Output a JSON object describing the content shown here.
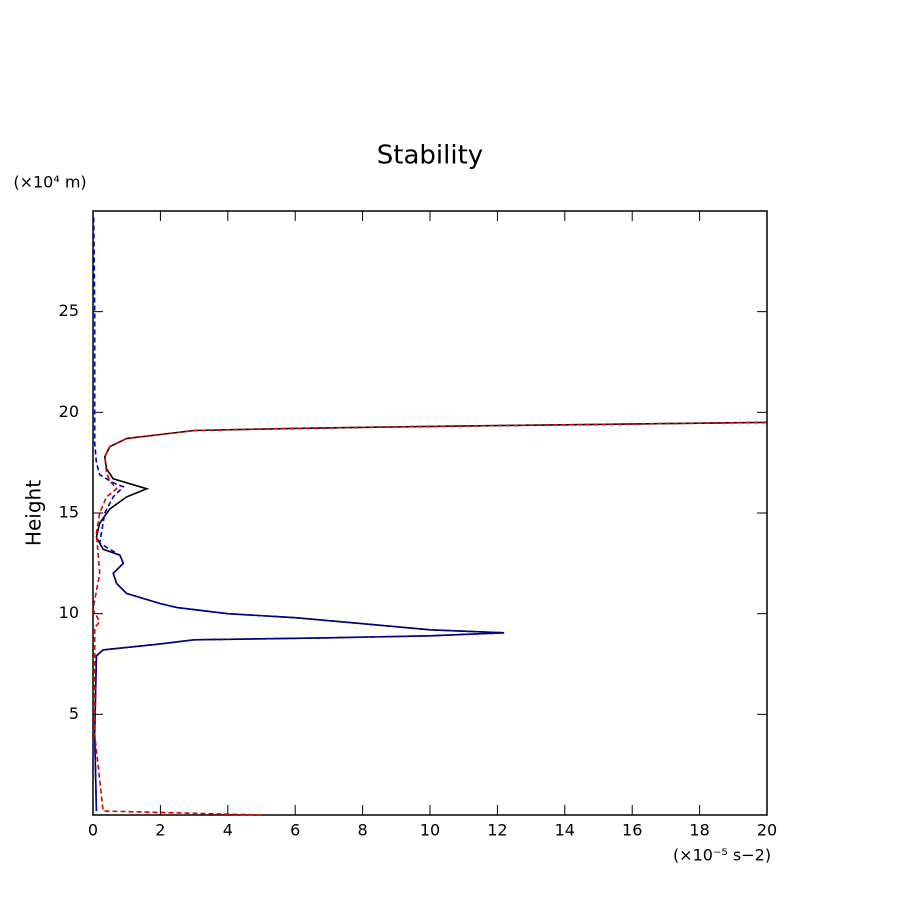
{
  "chart_data": {
    "type": "line",
    "title": "Stability",
    "y_label": "Height",
    "y_unit_label": "(×10⁴ m)",
    "x_unit_label": "(×10⁻⁵ s−2)",
    "xlim": [
      0,
      20
    ],
    "xticks": [
      0,
      2,
      4,
      6,
      8,
      10,
      12,
      14,
      16,
      18,
      20
    ],
    "ylim": [
      0,
      30
    ],
    "yticks": [
      5,
      10,
      15,
      20,
      25
    ],
    "series": [
      {
        "color": "#000000",
        "dash": false,
        "x": [
          0.1,
          0.05,
          0.1,
          0.3,
          2,
          3,
          7,
          10,
          12.2,
          10,
          8,
          6,
          4,
          2.5,
          2,
          1,
          0.7,
          0.6,
          0.9,
          0.8,
          0.3,
          0.1,
          0.2,
          0.5,
          1,
          1.6,
          1.2,
          0.6,
          0.4,
          0.35,
          0.5,
          1,
          2,
          3,
          6,
          10,
          15,
          20
        ],
        "y": [
          0.2,
          4,
          7.9,
          8.2,
          8.5,
          8.7,
          8.8,
          8.9,
          9.05,
          9.2,
          9.5,
          9.8,
          10,
          10.3,
          10.5,
          11,
          11.5,
          12,
          12.5,
          12.9,
          13.2,
          13.8,
          14.5,
          15.2,
          15.8,
          16.2,
          16.4,
          16.7,
          17.2,
          17.8,
          18.3,
          18.7,
          18.9,
          19.1,
          19.2,
          19.3,
          19.4,
          19.5
        ]
      },
      {
        "color": "#0000cc",
        "dash": true,
        "x": [
          0.1,
          0.05,
          0.1,
          0.3,
          2,
          3,
          7,
          10,
          12.2,
          10,
          8,
          6,
          4,
          2.5,
          2,
          1,
          0.7,
          0.6,
          0.9,
          0.8,
          0.2,
          0.35,
          0.6,
          0.9,
          0.6,
          0.2,
          0.1,
          0.05,
          0.05,
          0.05,
          0.02
        ],
        "y": [
          0.2,
          4,
          7.9,
          8.2,
          8.5,
          8.7,
          8.8,
          8.9,
          9.05,
          9.2,
          9.5,
          9.8,
          10,
          10.3,
          10.5,
          11,
          11.5,
          12,
          12.5,
          12.9,
          13.5,
          15,
          15.8,
          16.3,
          16.5,
          16.9,
          17.5,
          18.5,
          20,
          25,
          29.8
        ]
      },
      {
        "color": "#dd0000",
        "dash": true,
        "x": [
          5,
          0.3,
          0.05,
          0.05,
          0.2,
          0.0,
          0.2,
          0.1,
          0.2,
          0.4,
          0.7,
          0.5,
          0.4,
          0.35,
          0.5,
          1,
          2,
          3,
          6,
          10,
          15,
          20
        ],
        "y": [
          0,
          0.2,
          4,
          9.3,
          9.6,
          10.2,
          12,
          14,
          15,
          15.8,
          16.2,
          16.6,
          17,
          17.8,
          18.3,
          18.7,
          18.9,
          19.1,
          19.2,
          19.3,
          19.4,
          19.5
        ]
      }
    ]
  }
}
